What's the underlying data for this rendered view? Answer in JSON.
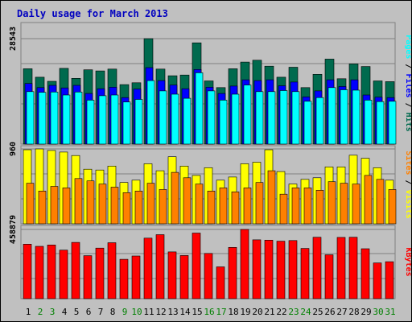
{
  "chart_data": [
    {
      "type": "bar",
      "title": "Daily usage for March 2013",
      "title_color": "#0000c0",
      "categories": [
        "1",
        "2",
        "3",
        "4",
        "5",
        "6",
        "7",
        "8",
        "9",
        "10",
        "11",
        "12",
        "13",
        "14",
        "15",
        "16",
        "17",
        "18",
        "19",
        "20",
        "21",
        "22",
        "23",
        "24",
        "25",
        "26",
        "27",
        "28",
        "29",
        "30",
        "31"
      ],
      "weekend_days": [
        "2",
        "3",
        "9",
        "10",
        "16",
        "17",
        "23",
        "24",
        "30",
        "31"
      ],
      "ymax_label": "28543",
      "ylim": [
        0,
        28543
      ],
      "ylabel": "Pages / Files / Hits",
      "series": [
        {
          "name": "Hits",
          "color": "#006a4e",
          "values": [
            20400,
            18100,
            17000,
            20500,
            17800,
            20100,
            19800,
            20300,
            16100,
            16600,
            28543,
            20300,
            18500,
            18700,
            27400,
            17100,
            15300,
            20400,
            22200,
            22700,
            21100,
            18100,
            20800,
            15300,
            18900,
            23000,
            17700,
            21700,
            21000,
            17100,
            16900
          ]
        },
        {
          "name": "Files",
          "color": "#0000ff",
          "values": [
            16400,
            15300,
            15900,
            15200,
            15900,
            13700,
            15000,
            15400,
            12600,
            14900,
            20700,
            17200,
            16000,
            15000,
            20200,
            15400,
            13700,
            15700,
            17400,
            17200,
            17400,
            15800,
            16800,
            12800,
            14400,
            17400,
            15600,
            17400,
            13300,
            12700,
            12600
          ]
        },
        {
          "name": "Pages",
          "color": "#00ffff",
          "values": [
            14200,
            14000,
            14100,
            13300,
            14100,
            11900,
            13100,
            13300,
            11400,
            12100,
            17200,
            14400,
            13500,
            12400,
            19300,
            14400,
            11900,
            13500,
            16000,
            14200,
            14200,
            14500,
            14200,
            11600,
            12600,
            15300,
            14700,
            14600,
            11900,
            11500,
            11600
          ]
        }
      ]
    },
    {
      "type": "bar",
      "ymax_label": "960",
      "ylim": [
        0,
        960
      ],
      "ylabel": "Sites / Visits",
      "series": [
        {
          "name": "Visits",
          "color": "#ffff00",
          "values": [
            950,
            960,
            940,
            920,
            875,
            700,
            690,
            740,
            530,
            560,
            770,
            680,
            860,
            740,
            620,
            720,
            560,
            600,
            770,
            790,
            950,
            670,
            510,
            570,
            590,
            730,
            730,
            880,
            840,
            720,
            560
          ]
        },
        {
          "name": "Sites",
          "color": "#ff8000",
          "values": [
            520,
            420,
            480,
            460,
            580,
            550,
            510,
            470,
            400,
            420,
            520,
            440,
            660,
            590,
            510,
            420,
            460,
            410,
            460,
            530,
            680,
            380,
            460,
            460,
            430,
            540,
            520,
            510,
            620,
            570,
            440
          ]
        }
      ]
    },
    {
      "type": "bar",
      "ymax_label": "458879",
      "ylim": [
        0,
        458879
      ],
      "ylabel": "KBytes",
      "series": [
        {
          "name": "KBytes",
          "color": "#ff0000",
          "values": [
            361000,
            347000,
            356000,
            322000,
            373000,
            285000,
            335000,
            371000,
            261000,
            283000,
            401000,
            424000,
            310000,
            286000,
            435000,
            300000,
            211000,
            340000,
            458879,
            390000,
            388000,
            381000,
            385000,
            333000,
            407000,
            291000,
            406000,
            407000,
            331000,
            237000,
            245000
          ]
        }
      ]
    }
  ],
  "colors": {
    "background": "#c0c0c0",
    "weekday_label": "#000000",
    "weekend_label": "#008000"
  }
}
